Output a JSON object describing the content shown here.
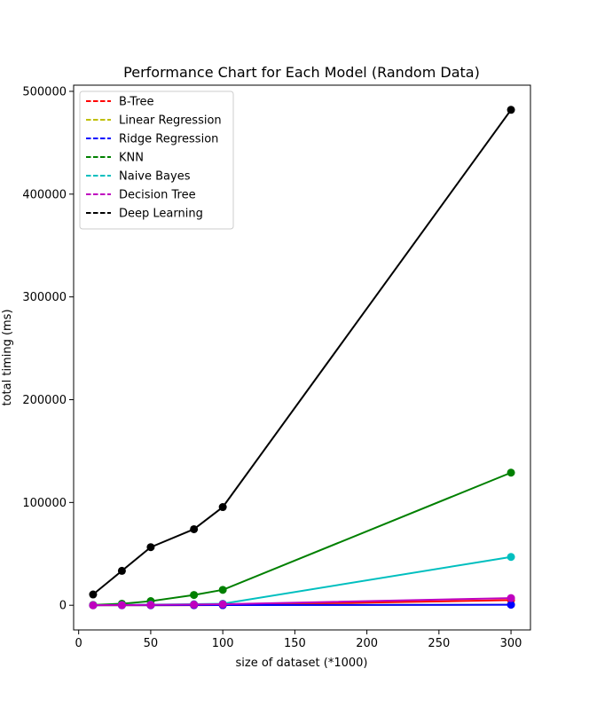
{
  "chart_data": {
    "type": "line",
    "title": "Performance Chart for Each Model (Random Data)",
    "xlabel": "size of dataset (*1000)",
    "ylabel": "total timing (ms)",
    "x": [
      10,
      30,
      50,
      80,
      100,
      300
    ],
    "xlim": [
      -3.5,
      313.5
    ],
    "ylim": [
      -24000,
      506000
    ],
    "xticks": [
      0,
      50,
      100,
      150,
      200,
      250,
      300
    ],
    "yticks": [
      0,
      100000,
      200000,
      300000,
      400000,
      500000
    ],
    "grid": false,
    "legend_position": "top-left",
    "legend_line_style": "dashed",
    "series": [
      {
        "name": "B-Tree",
        "color": "#ff0000",
        "values": [
          10,
          30,
          60,
          100,
          130,
          5000
        ]
      },
      {
        "name": "Linear Regression",
        "color": "#bfbf00",
        "values": [
          20,
          60,
          100,
          160,
          200,
          600
        ]
      },
      {
        "name": "Ridge Regression",
        "color": "#0000ff",
        "values": [
          15,
          45,
          80,
          130,
          160,
          500
        ]
      },
      {
        "name": "KNN",
        "color": "#008000",
        "values": [
          300,
          1500,
          4000,
          10000,
          15000,
          129000
        ]
      },
      {
        "name": "Naive Bayes",
        "color": "#00bfbf",
        "values": [
          100,
          300,
          600,
          1000,
          1500,
          47000
        ]
      },
      {
        "name": "Decision Tree",
        "color": "#bf00bf",
        "values": [
          50,
          200,
          400,
          700,
          1000,
          7000
        ]
      },
      {
        "name": "Deep Learning",
        "color": "#000000",
        "values": [
          10500,
          33500,
          56500,
          74000,
          95500,
          482000
        ]
      }
    ]
  }
}
